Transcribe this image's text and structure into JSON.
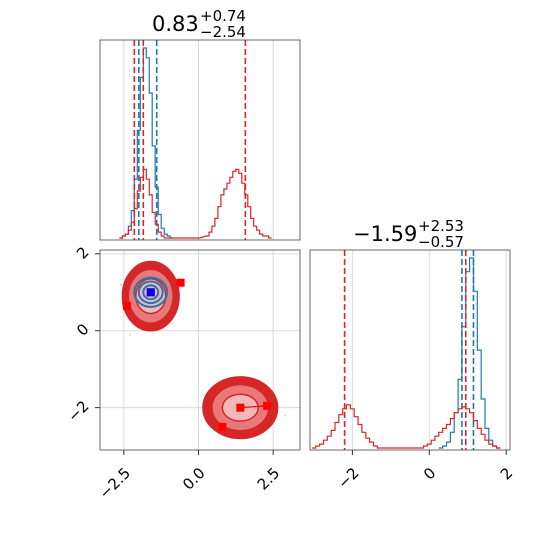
{
  "chart_data": [
    {
      "type": "histogram",
      "panel": "top-left",
      "title": {
        "main": "0.83",
        "sup": "+0.74",
        "sub": "−2.54"
      },
      "xlim": [
        -3.3,
        3.4
      ],
      "series": [
        {
          "color": "#1f77b4",
          "bins": [
            [
              -2.6,
              0.0
            ],
            [
              -2.5,
              0.01
            ],
            [
              -2.4,
              0.02
            ],
            [
              -2.3,
              0.06
            ],
            [
              -2.2,
              0.14
            ],
            [
              -2.1,
              0.3
            ],
            [
              -2.0,
              0.55
            ],
            [
              -1.9,
              0.82
            ],
            [
              -1.8,
              0.97
            ],
            [
              -1.7,
              0.92
            ],
            [
              -1.6,
              0.74
            ],
            [
              -1.5,
              0.47
            ],
            [
              -1.4,
              0.26
            ],
            [
              -1.3,
              0.12
            ],
            [
              -1.2,
              0.05
            ],
            [
              -1.1,
              0.02
            ],
            [
              -1.0,
              0.01
            ],
            [
              -0.9,
              0.0
            ]
          ],
          "quantile_lines": [
            -2.0,
            -1.4
          ]
        },
        {
          "color": "#d62728",
          "bins": [
            [
              -2.6,
              0.0
            ],
            [
              -2.5,
              0.01
            ],
            [
              -2.4,
              0.02
            ],
            [
              -2.3,
              0.04
            ],
            [
              -2.2,
              0.08
            ],
            [
              -2.1,
              0.15
            ],
            [
              -2.0,
              0.24
            ],
            [
              -1.9,
              0.31
            ],
            [
              -1.8,
              0.35
            ],
            [
              -1.7,
              0.3
            ],
            [
              -1.6,
              0.22
            ],
            [
              -1.5,
              0.13
            ],
            [
              -1.4,
              0.07
            ],
            [
              -1.3,
              0.03
            ],
            [
              -1.2,
              0.01
            ],
            [
              -1.1,
              0.0
            ],
            [
              0.0,
              0.0
            ],
            [
              0.3,
              0.01
            ],
            [
              0.4,
              0.03
            ],
            [
              0.5,
              0.06
            ],
            [
              0.6,
              0.1
            ],
            [
              0.7,
              0.16
            ],
            [
              0.8,
              0.22
            ],
            [
              0.9,
              0.25
            ],
            [
              1.0,
              0.28
            ],
            [
              1.1,
              0.31
            ],
            [
              1.2,
              0.34
            ],
            [
              1.3,
              0.35
            ],
            [
              1.4,
              0.33
            ],
            [
              1.5,
              0.28
            ],
            [
              1.6,
              0.22
            ],
            [
              1.7,
              0.16
            ],
            [
              1.8,
              0.1
            ],
            [
              1.9,
              0.06
            ],
            [
              2.0,
              0.04
            ],
            [
              2.1,
              0.02
            ],
            [
              2.2,
              0.01
            ],
            [
              2.3,
              0.01
            ],
            [
              2.4,
              0.0
            ]
          ],
          "quantile_lines": [
            -2.15,
            -1.85,
            1.57
          ]
        }
      ]
    },
    {
      "type": "contour",
      "panel": "bottom-left",
      "xlim": [
        -3.3,
        3.4
      ],
      "ylim": [
        -3.1,
        2.1
      ],
      "xticks": [
        -2.5,
        0.0,
        2.5
      ],
      "yticks": [
        -2,
        0,
        2
      ],
      "xtick_labels": [
        "−2.5",
        "0.0",
        "2.5"
      ],
      "ytick_labels": [
        "−2",
        "0",
        "2"
      ],
      "series": [
        {
          "color": "#d62728",
          "blobs": [
            {
              "cx": -1.6,
              "cy": 0.9,
              "rx": [
                0.5,
                0.75,
                0.95
              ],
              "ry": [
                0.45,
                0.7,
                0.9
              ]
            },
            {
              "cx": 1.4,
              "cy": -2.0,
              "rx": [
                0.6,
                0.95,
                1.25
              ],
              "ry": [
                0.35,
                0.6,
                0.8
              ]
            }
          ],
          "markers": [
            {
              "x": -2.4,
              "y": 0.65
            },
            {
              "x": -1.6,
              "y": 1.0
            },
            {
              "x": -0.6,
              "y": 1.25
            },
            {
              "x": 1.4,
              "y": -2.0
            },
            {
              "x": 2.3,
              "y": -1.95
            },
            {
              "x": 0.8,
              "y": -2.5
            }
          ]
        },
        {
          "color": "#1f77b4",
          "blobs": [
            {
              "cx": -1.6,
              "cy": 1.0,
              "rx": [
                0.25,
                0.4,
                0.55
              ],
              "ry": [
                0.18,
                0.28,
                0.38
              ]
            }
          ],
          "markers": [
            {
              "x": -1.6,
              "y": 1.0
            }
          ],
          "marker_color": "#0000ff"
        }
      ]
    },
    {
      "type": "histogram",
      "panel": "bottom-right",
      "title": {
        "main": "−1.59",
        "sup": "+2.53",
        "sub": "−0.57"
      },
      "xlim": [
        -3.1,
        2.1
      ],
      "xticks": [
        -2,
        0,
        2
      ],
      "xtick_labels": [
        "−2",
        "0",
        "2"
      ],
      "series": [
        {
          "color": "#1f77b4",
          "bins": [
            [
              0.3,
              0.0
            ],
            [
              0.4,
              0.01
            ],
            [
              0.5,
              0.03
            ],
            [
              0.6,
              0.08
            ],
            [
              0.7,
              0.18
            ],
            [
              0.8,
              0.35
            ],
            [
              0.9,
              0.62
            ],
            [
              1.0,
              0.9
            ],
            [
              1.1,
              0.97
            ],
            [
              1.2,
              0.8
            ],
            [
              1.3,
              0.5
            ],
            [
              1.4,
              0.25
            ],
            [
              1.5,
              0.1
            ],
            [
              1.6,
              0.04
            ],
            [
              1.7,
              0.01
            ],
            [
              1.8,
              0.0
            ]
          ],
          "quantile_lines": [
            0.85,
            1.15
          ]
        },
        {
          "color": "#d62728",
          "bins": [
            [
              -3.0,
              0.0
            ],
            [
              -2.9,
              0.01
            ],
            [
              -2.8,
              0.02
            ],
            [
              -2.7,
              0.04
            ],
            [
              -2.6,
              0.06
            ],
            [
              -2.5,
              0.09
            ],
            [
              -2.4,
              0.13
            ],
            [
              -2.3,
              0.17
            ],
            [
              -2.2,
              0.2
            ],
            [
              -2.1,
              0.22
            ],
            [
              -2.0,
              0.2
            ],
            [
              -1.9,
              0.16
            ],
            [
              -1.8,
              0.12
            ],
            [
              -1.7,
              0.08
            ],
            [
              -1.6,
              0.05
            ],
            [
              -1.5,
              0.03
            ],
            [
              -1.4,
              0.01
            ],
            [
              -1.3,
              0.0
            ],
            [
              -0.2,
              0.0
            ],
            [
              -0.1,
              0.01
            ],
            [
              0.0,
              0.02
            ],
            [
              0.1,
              0.04
            ],
            [
              0.2,
              0.06
            ],
            [
              0.3,
              0.08
            ],
            [
              0.4,
              0.1
            ],
            [
              0.5,
              0.12
            ],
            [
              0.6,
              0.15
            ],
            [
              0.7,
              0.18
            ],
            [
              0.8,
              0.2
            ],
            [
              0.9,
              0.21
            ],
            [
              1.0,
              0.2
            ],
            [
              1.1,
              0.18
            ],
            [
              1.2,
              0.14
            ],
            [
              1.3,
              0.1
            ],
            [
              1.4,
              0.07
            ],
            [
              1.5,
              0.04
            ],
            [
              1.6,
              0.02
            ],
            [
              1.7,
              0.01
            ],
            [
              1.8,
              0.0
            ]
          ],
          "quantile_lines": [
            -2.2,
            0.95
          ]
        }
      ]
    }
  ]
}
